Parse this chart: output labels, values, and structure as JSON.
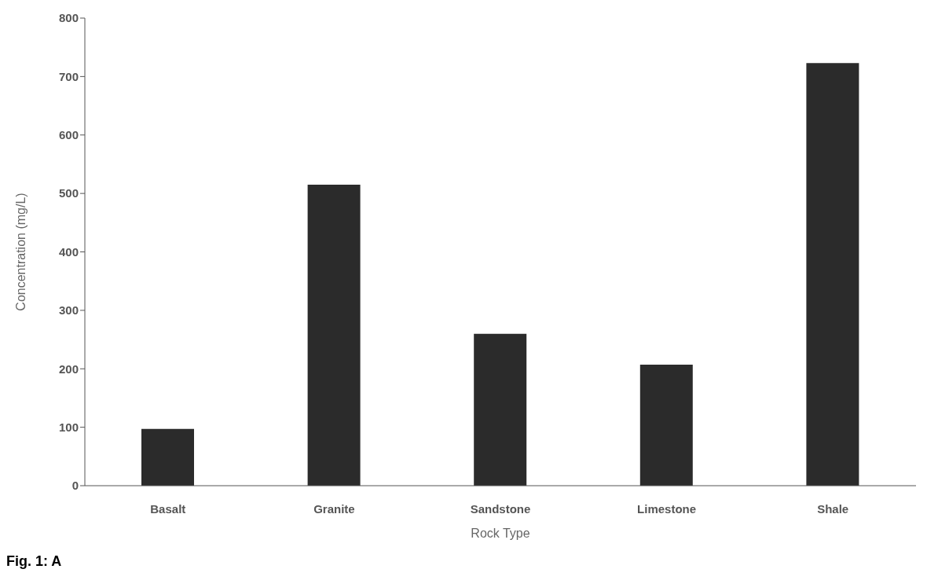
{
  "chart_data": {
    "type": "bar",
    "xlabel": "Rock Type",
    "ylabel": "Concentration (mg/L)",
    "categories": [
      "Basalt",
      "Granite",
      "Sandstone",
      "Limestone",
      "Shale"
    ],
    "values": [
      97,
      515,
      260,
      207,
      723
    ],
    "color": "#2b2b2b",
    "ylim": [
      0,
      800
    ],
    "yticks": [
      0,
      100,
      200,
      300,
      400,
      500,
      600,
      700,
      800
    ],
    "grid": false,
    "annotations": [
      "Fig. 1: A"
    ]
  }
}
